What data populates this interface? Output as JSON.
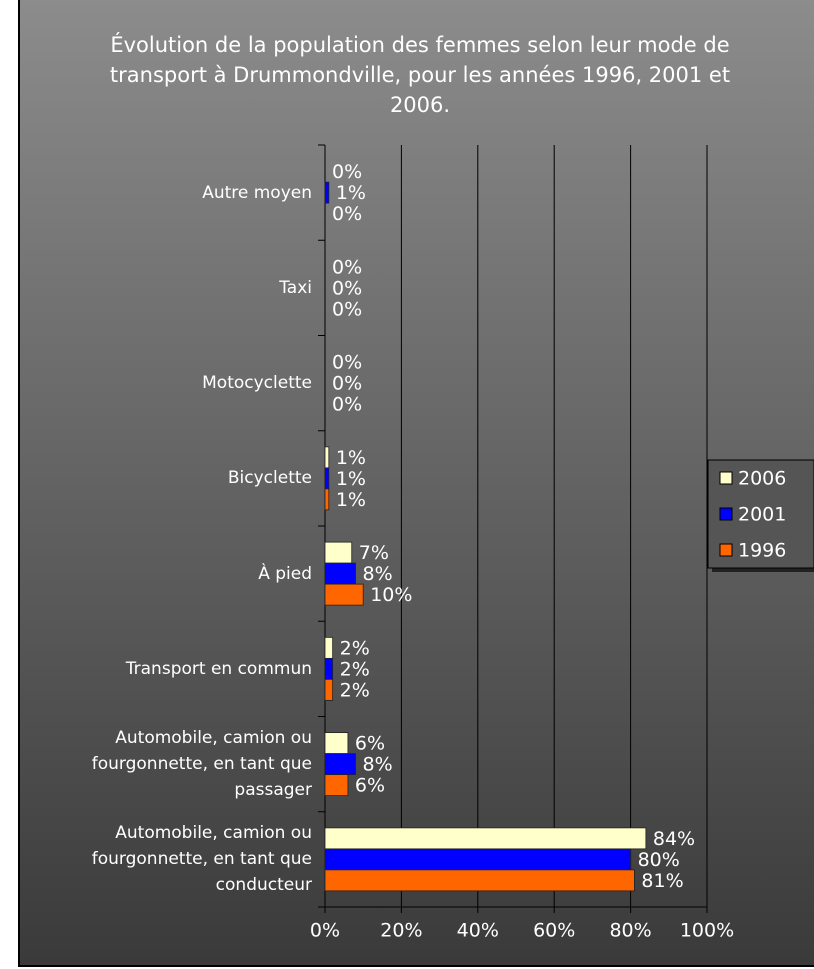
{
  "chart_data": {
    "type": "bar",
    "orientation": "horizontal",
    "title": "Évolution de la population des femmes selon leur mode de transport à Drummondville, pour les années 1996, 2001 et 2006.",
    "categories": [
      "Autre moyen",
      "Taxi",
      "Motocyclette",
      "Bicyclette",
      "À pied",
      "Transport en commun",
      "Automobile, camion ou fourgonnette, en tant que passager",
      "Automobile, camion ou fourgonnette, en tant que conducteur"
    ],
    "series": [
      {
        "name": "2006",
        "color": "#ffffcc",
        "values": [
          0,
          0,
          0,
          1,
          7,
          2,
          6,
          84
        ],
        "value_labels": [
          "0%",
          "0%",
          "0%",
          "1%",
          "7%",
          "2%",
          "6%",
          "84%"
        ]
      },
      {
        "name": "2001",
        "color": "#0000ff",
        "values": [
          1,
          0,
          0,
          1,
          8,
          2,
          8,
          80
        ],
        "value_labels": [
          "1%",
          "0%",
          "0%",
          "1%",
          "8%",
          "2%",
          "8%",
          "80%"
        ]
      },
      {
        "name": "1996",
        "color": "#ff6600",
        "values": [
          0,
          0,
          0,
          1,
          10,
          2,
          6,
          81
        ],
        "value_labels": [
          "0%",
          "0%",
          "0%",
          "1%",
          "10%",
          "2%",
          "6%",
          "81%"
        ]
      }
    ],
    "xlim": [
      0,
      100
    ],
    "xticks": [
      {
        "value": 0,
        "label": "0%"
      },
      {
        "value": 20,
        "label": "20%"
      },
      {
        "value": 40,
        "label": "40%"
      },
      {
        "value": 60,
        "label": "60%"
      },
      {
        "value": 80,
        "label": "80%"
      },
      {
        "value": 100,
        "label": "100%"
      }
    ],
    "grid": true,
    "legend": "right"
  }
}
